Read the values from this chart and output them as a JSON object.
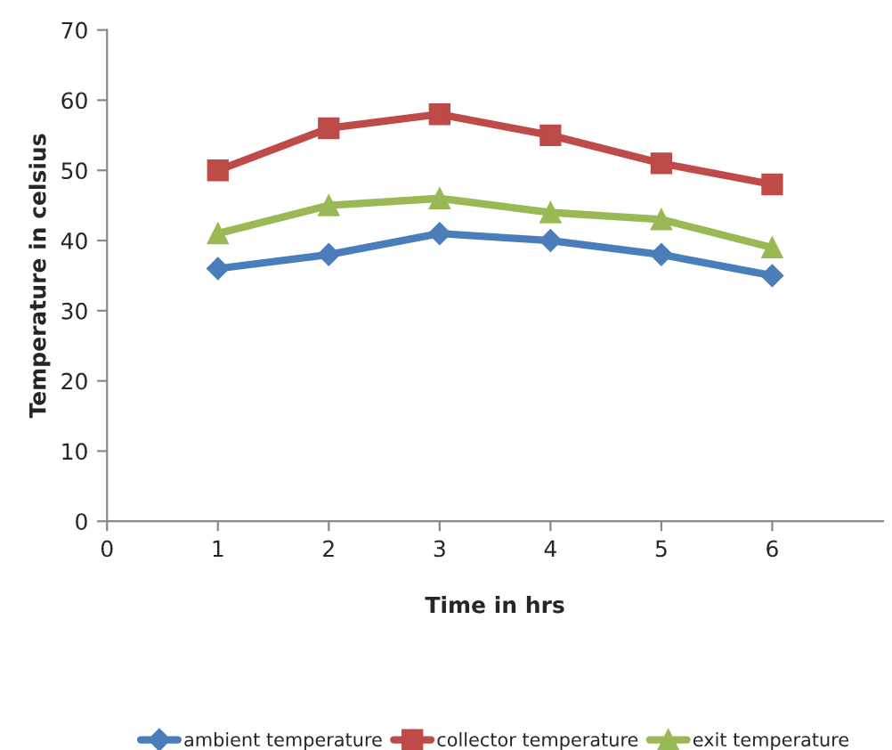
{
  "chart_data": {
    "type": "line",
    "xlabel": "Time in hrs",
    "ylabel": "Temperature in celsius",
    "x": [
      1,
      2,
      3,
      4,
      5,
      6
    ],
    "series": [
      {
        "name": "ambient temperature",
        "color": "#4a7ebb",
        "marker": "diamond",
        "values": [
          36,
          38,
          41,
          40,
          38,
          35
        ]
      },
      {
        "name": "collector temperature",
        "color": "#be4b48",
        "marker": "square",
        "values": [
          50,
          56,
          58,
          55,
          51,
          48
        ]
      },
      {
        "name": "exit temperature",
        "color": "#98b954",
        "marker": "triangle",
        "values": [
          41,
          45,
          46,
          44,
          43,
          39
        ]
      }
    ],
    "xlim": [
      0,
      7
    ],
    "xticks": [
      0,
      1,
      2,
      3,
      4,
      5,
      6
    ],
    "ylim": [
      0,
      70
    ],
    "yticks": [
      0,
      10,
      20,
      30,
      40,
      50,
      60,
      70
    ],
    "grid": false,
    "legend": "bottom",
    "line_style": "solid"
  }
}
